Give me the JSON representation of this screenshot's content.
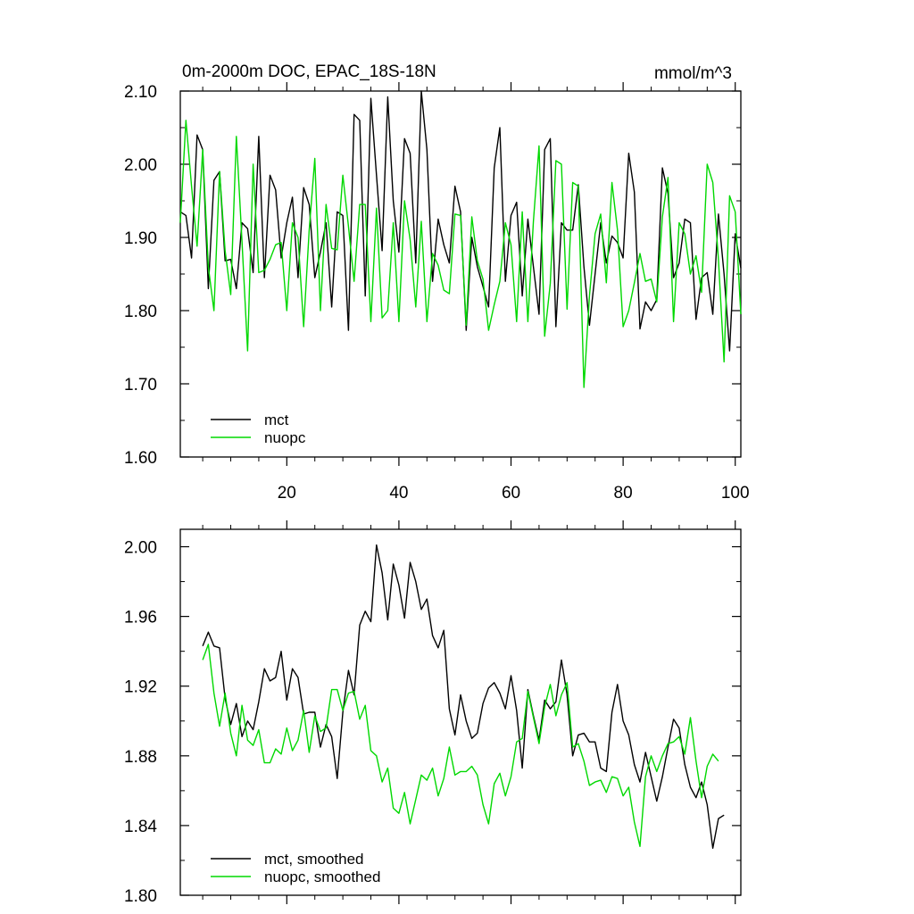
{
  "chart_data": [
    {
      "type": "line",
      "title": "0m-2000m DOC, EPAC_18S-18N",
      "units": "mmol/m^3",
      "xlabel": "",
      "ylabel": "",
      "xlim": [
        1,
        101
      ],
      "ylim": [
        1.6,
        2.1
      ],
      "yticks": [
        "1.60",
        "1.70",
        "1.80",
        "1.90",
        "2.00",
        "2.10"
      ],
      "xticks": [
        "20",
        "40",
        "60",
        "80",
        "100"
      ],
      "legend": "bottom-left",
      "series": [
        {
          "name": "mct",
          "color": "#000000",
          "x_start": 1,
          "values": [
            1.935,
            1.93,
            1.872,
            2.04,
            2.02,
            1.83,
            1.978,
            1.99,
            1.868,
            1.87,
            1.83,
            1.92,
            1.912,
            1.852,
            2.038,
            1.845,
            1.985,
            1.965,
            1.872,
            1.92,
            1.955,
            1.845,
            1.968,
            1.945,
            1.845,
            1.88,
            1.92,
            1.805,
            1.935,
            1.93,
            1.773,
            2.068,
            2.06,
            1.82,
            2.09,
            1.985,
            1.882,
            2.092,
            1.95,
            1.88,
            2.035,
            2.015,
            1.865,
            2.1,
            2.02,
            1.84,
            1.925,
            1.89,
            1.865,
            1.97,
            1.935,
            1.773,
            1.9,
            1.86,
            1.833,
            1.805,
            1.995,
            2.05,
            1.84,
            1.93,
            1.948,
            1.82,
            1.925,
            1.86,
            1.795,
            2.02,
            2.035,
            1.778,
            1.92,
            1.91,
            1.91,
            1.972,
            1.86,
            1.78,
            1.85,
            1.92,
            1.865,
            1.902,
            1.893,
            1.872,
            2.015,
            1.962,
            1.775,
            1.812,
            1.8,
            1.815,
            1.995,
            1.96,
            1.845,
            1.865,
            1.925,
            1.92,
            1.788,
            1.845,
            1.852,
            1.795,
            1.932,
            1.85,
            1.745,
            1.905,
            1.858
          ]
        },
        {
          "name": "nuopc",
          "color": "#00d800",
          "x_start": 1,
          "values": [
            1.92,
            2.06,
            1.97,
            1.888,
            2.02,
            1.86,
            1.8,
            1.99,
            1.882,
            1.822,
            2.038,
            1.895,
            1.745,
            2.0,
            1.852,
            1.855,
            1.87,
            1.89,
            1.893,
            1.8,
            1.92,
            1.9,
            1.778,
            1.91,
            2.008,
            1.8,
            1.945,
            1.885,
            1.883,
            1.985,
            1.915,
            1.84,
            1.945,
            1.945,
            1.785,
            1.94,
            1.79,
            1.8,
            1.92,
            1.785,
            1.95,
            1.897,
            1.805,
            1.922,
            1.785,
            1.878,
            1.862,
            1.828,
            1.823,
            1.932,
            1.93,
            1.78,
            1.928,
            1.868,
            1.843,
            1.773,
            1.808,
            1.84,
            1.92,
            1.89,
            1.785,
            1.935,
            1.785,
            1.922,
            2.025,
            1.765,
            1.837,
            2.005,
            2.0,
            1.802,
            1.975,
            1.97,
            1.695,
            1.82,
            1.905,
            1.932,
            1.838,
            1.975,
            1.91,
            1.778,
            1.8,
            1.838,
            1.878,
            1.84,
            1.843,
            1.812,
            1.928,
            1.982,
            1.785,
            1.92,
            1.905,
            1.85,
            1.875,
            1.825,
            2.0,
            1.975,
            1.87,
            1.73,
            1.957,
            1.935,
            1.795
          ]
        }
      ]
    },
    {
      "type": "line",
      "title": "",
      "xlabel": "",
      "ylabel": "",
      "xlim": [
        1,
        101
      ],
      "ylim": [
        1.8,
        2.01
      ],
      "yticks": [
        "1.80",
        "1.84",
        "1.88",
        "1.92",
        "1.96",
        "2.00"
      ],
      "xticks": [],
      "legend": "bottom-left",
      "series": [
        {
          "name": "mct, smoothed",
          "color": "#000000",
          "x_start": 5,
          "values": [
            1.943,
            1.951,
            1.943,
            1.942,
            1.913,
            1.898,
            1.91,
            1.891,
            1.9,
            1.895,
            1.911,
            1.93,
            1.923,
            1.925,
            1.94,
            1.912,
            1.93,
            1.925,
            1.904,
            1.905,
            1.905,
            1.885,
            1.898,
            1.891,
            1.867,
            1.905,
            1.929,
            1.915,
            1.955,
            1.963,
            1.957,
            2.001,
            1.985,
            1.958,
            1.99,
            1.978,
            1.959,
            1.991,
            1.98,
            1.964,
            1.97,
            1.949,
            1.942,
            1.952,
            1.907,
            1.892,
            1.915,
            1.9,
            1.89,
            1.893,
            1.91,
            1.919,
            1.922,
            1.916,
            1.907,
            1.926,
            1.906,
            1.873,
            1.918,
            1.903,
            1.889,
            1.912,
            1.907,
            1.911,
            1.935,
            1.915,
            1.88,
            1.892,
            1.893,
            1.888,
            1.888,
            1.873,
            1.871,
            1.905,
            1.921,
            1.9,
            1.892,
            1.875,
            1.865,
            1.882,
            1.868,
            1.854,
            1.868,
            1.885,
            1.901,
            1.896,
            1.875,
            1.862,
            1.856,
            1.865,
            1.852,
            1.827,
            1.844,
            1.846
          ]
        },
        {
          "name": "nuopc, smoothed",
          "color": "#00d800",
          "x_start": 5,
          "values": [
            1.935,
            1.944,
            1.916,
            1.897,
            1.916,
            1.893,
            1.88,
            1.909,
            1.889,
            1.886,
            1.895,
            1.876,
            1.876,
            1.884,
            1.881,
            1.896,
            1.883,
            1.889,
            1.906,
            1.882,
            1.903,
            1.894,
            1.896,
            1.918,
            1.918,
            1.906,
            1.916,
            1.917,
            1.901,
            1.909,
            1.883,
            1.88,
            1.865,
            1.873,
            1.85,
            1.847,
            1.859,
            1.841,
            1.855,
            1.869,
            1.866,
            1.873,
            1.857,
            1.867,
            1.885,
            1.869,
            1.871,
            1.871,
            1.874,
            1.869,
            1.852,
            1.841,
            1.864,
            1.87,
            1.857,
            1.868,
            1.888,
            1.89,
            1.917,
            1.902,
            1.887,
            1.908,
            1.921,
            1.903,
            1.915,
            1.922,
            1.885,
            1.887,
            1.877,
            1.863,
            1.865,
            1.866,
            1.859,
            1.868,
            1.867,
            1.857,
            1.862,
            1.842,
            1.828,
            1.868,
            1.88,
            1.871,
            1.88,
            1.887,
            1.888,
            1.891,
            1.881,
            1.902,
            1.877,
            1.856,
            1.874,
            1.881,
            1.877
          ]
        }
      ]
    }
  ]
}
